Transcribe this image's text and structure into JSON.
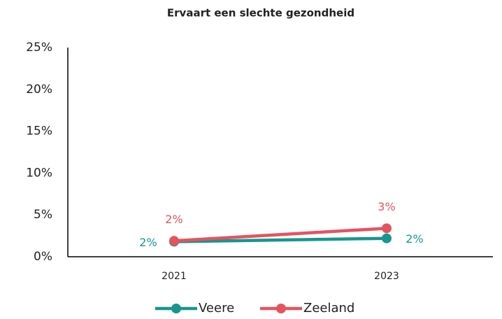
{
  "chart_data": {
    "type": "line",
    "title": "Ervaart een slechte gezondheid",
    "categories": [
      "2021",
      "2023"
    ],
    "series": [
      {
        "name": "Veere",
        "color": "#17968f",
        "values": [
          1.8,
          2.2
        ],
        "value_labels": [
          "2%",
          "2%"
        ]
      },
      {
        "name": "Zeeland",
        "color": "#e5535f",
        "values": [
          1.9,
          3.4
        ],
        "value_labels": [
          "2%",
          "3%"
        ]
      }
    ],
    "ylim": [
      0,
      25
    ],
    "yticks": [
      {
        "value": 0,
        "label": "0%"
      },
      {
        "value": 5,
        "label": "5%"
      },
      {
        "value": 10,
        "label": "10%"
      },
      {
        "value": 15,
        "label": "15%"
      },
      {
        "value": 20,
        "label": "20%"
      },
      {
        "value": 25,
        "label": "25%"
      }
    ],
    "legend": "bottom"
  }
}
